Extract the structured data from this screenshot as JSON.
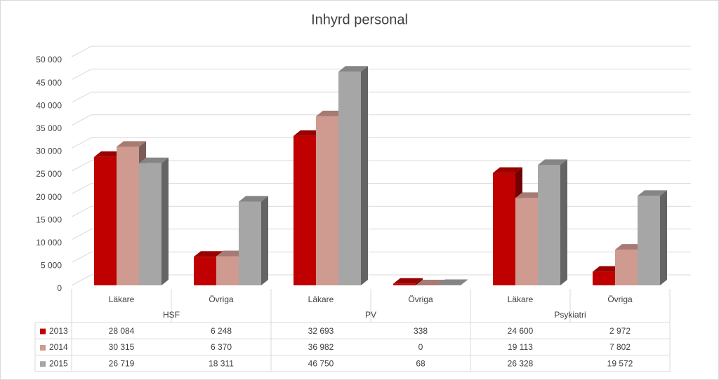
{
  "chart_data": {
    "type": "bar",
    "title": "Inhyrd personal",
    "groups": [
      "HSF",
      "PV",
      "Psykiatri"
    ],
    "categories": [
      "Läkare",
      "Övriga",
      "Läkare",
      "Övriga",
      "Läkare",
      "Övriga"
    ],
    "series": [
      {
        "name": "2013",
        "color": "#c00000",
        "values": [
          28084,
          6248,
          32693,
          338,
          24600,
          2972
        ],
        "value_labels": [
          "28 084",
          "6 248",
          "32 693",
          "338",
          "24 600",
          "2 972"
        ]
      },
      {
        "name": "2014",
        "color": "#cf9a90",
        "values": [
          30315,
          6370,
          36982,
          0,
          19113,
          7802
        ],
        "value_labels": [
          "30 315",
          "6 370",
          "36 982",
          "0",
          "19 113",
          "7 802"
        ]
      },
      {
        "name": "2015",
        "color": "#a6a6a6",
        "values": [
          26719,
          18311,
          46750,
          68,
          26328,
          19572
        ],
        "value_labels": [
          "26 719",
          "18 311",
          "46 750",
          "68",
          "26 328",
          "19 572"
        ]
      }
    ],
    "ylim": [
      0,
      50000
    ],
    "yticks": [
      0,
      {
        "value": 5000,
        "label": "5 000"
      },
      {
        "value": 10000,
        "label": "10 000"
      },
      {
        "value": 15000,
        "label": "15 000"
      },
      {
        "value": 20000,
        "label": "20 000"
      },
      {
        "value": 25000,
        "label": "25 000"
      },
      {
        "value": 30000,
        "label": "30 000"
      },
      {
        "value": 35000,
        "label": "35 000"
      },
      {
        "value": 40000,
        "label": "40 000"
      },
      {
        "value": 45000,
        "label": "45 000"
      },
      {
        "value": 50000,
        "label": "50 000"
      }
    ],
    "grid": true
  }
}
